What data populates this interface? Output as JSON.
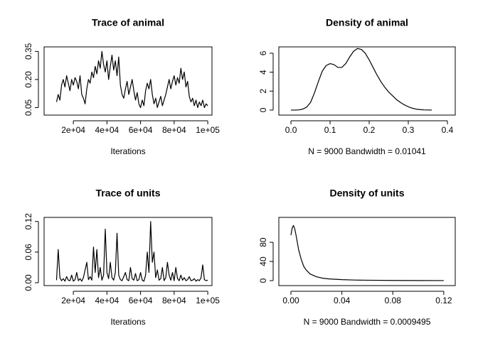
{
  "chart_data": [
    {
      "type": "line",
      "title": "Trace of animal",
      "x_label": "Iterations",
      "x": [
        10000,
        11000,
        12000,
        13000,
        14000,
        15000,
        16000,
        17000,
        18000,
        19000,
        20000,
        21000,
        22000,
        23000,
        24000,
        25000,
        26000,
        27000,
        28000,
        29000,
        30000,
        31000,
        32000,
        33000,
        34000,
        35000,
        36000,
        37000,
        38000,
        39000,
        40000,
        41000,
        42000,
        43000,
        44000,
        45000,
        46000,
        47000,
        48000,
        49000,
        50000,
        51000,
        52000,
        53000,
        54000,
        55000,
        56000,
        57000,
        58000,
        59000,
        60000,
        61000,
        62000,
        63000,
        64000,
        65000,
        66000,
        67000,
        68000,
        69000,
        70000,
        71000,
        72000,
        73000,
        74000,
        75000,
        76000,
        77000,
        78000,
        79000,
        80000,
        81000,
        82000,
        83000,
        84000,
        85000,
        86000,
        87000,
        88000,
        89000,
        90000,
        91000,
        92000,
        93000,
        94000,
        95000,
        96000,
        97000,
        98000,
        99000,
        100000
      ],
      "values": [
        0.08,
        0.12,
        0.09,
        0.17,
        0.2,
        0.16,
        0.22,
        0.18,
        0.14,
        0.2,
        0.17,
        0.21,
        0.19,
        0.15,
        0.22,
        0.12,
        0.1,
        0.07,
        0.15,
        0.2,
        0.18,
        0.24,
        0.21,
        0.27,
        0.23,
        0.3,
        0.26,
        0.35,
        0.28,
        0.24,
        0.3,
        0.2,
        0.27,
        0.33,
        0.25,
        0.3,
        0.22,
        0.32,
        0.17,
        0.12,
        0.1,
        0.15,
        0.19,
        0.12,
        0.16,
        0.2,
        0.14,
        0.09,
        0.13,
        0.07,
        0.05,
        0.09,
        0.06,
        0.14,
        0.18,
        0.15,
        0.2,
        0.12,
        0.07,
        0.1,
        0.05,
        0.08,
        0.11,
        0.06,
        0.09,
        0.12,
        0.16,
        0.2,
        0.15,
        0.19,
        0.22,
        0.17,
        0.21,
        0.18,
        0.26,
        0.2,
        0.24,
        0.16,
        0.19,
        0.11,
        0.08,
        0.1,
        0.06,
        0.09,
        0.05,
        0.08,
        0.06,
        0.09,
        0.05,
        0.07,
        0.06
      ],
      "color": "#000000",
      "xlim": [
        2600,
        102500
      ],
      "ylim": [
        0.01,
        0.374
      ],
      "xticks": [
        {
          "value": 20000,
          "label": "2e+04"
        },
        {
          "value": 40000,
          "label": "4e+04"
        },
        {
          "value": 60000,
          "label": "6e+04"
        },
        {
          "value": 80000,
          "label": "8e+04"
        },
        {
          "value": 100000,
          "label": "1e+05"
        }
      ],
      "yticks": [
        0.05,
        {
          "value": 0.2,
          "label": "0.20"
        },
        0.35
      ]
    },
    {
      "type": "line",
      "title": "Density of animal",
      "x_label": "N = 9000   Bandwidth = 0.01041",
      "x": [
        0,
        0.01,
        0.02,
        0.03,
        0.04,
        0.05,
        0.06,
        0.07,
        0.08,
        0.09,
        0.1,
        0.11,
        0.12,
        0.13,
        0.14,
        0.15,
        0.16,
        0.17,
        0.18,
        0.19,
        0.2,
        0.21,
        0.22,
        0.23,
        0.24,
        0.25,
        0.26,
        0.27,
        0.28,
        0.29,
        0.3,
        0.31,
        0.32,
        0.33,
        0.34,
        0.35,
        0.36
      ],
      "values": [
        0,
        0,
        0.02,
        0.1,
        0.3,
        0.8,
        1.8,
        3.0,
        4.1,
        4.7,
        4.9,
        4.8,
        4.5,
        4.5,
        4.9,
        5.6,
        6.2,
        6.5,
        6.4,
        6.0,
        5.3,
        4.5,
        3.7,
        3.0,
        2.4,
        1.9,
        1.5,
        1.1,
        0.8,
        0.55,
        0.35,
        0.2,
        0.1,
        0.05,
        0.02,
        0.01,
        0
      ],
      "color": "#000000",
      "xlim": [
        -0.031,
        0.42
      ],
      "ylim": [
        -0.53,
        6.67
      ],
      "xticks": [
        {
          "value": 0,
          "label": "0.0"
        },
        0.1,
        0.2,
        0.3,
        0.4
      ],
      "yticks": [
        0,
        2,
        4,
        6
      ]
    },
    {
      "type": "line",
      "title": "Trace of units",
      "x_label": "Iterations",
      "x": [
        10000,
        11000,
        12000,
        13000,
        14000,
        15000,
        16000,
        17000,
        18000,
        19000,
        20000,
        21000,
        22000,
        23000,
        24000,
        25000,
        26000,
        27000,
        28000,
        29000,
        30000,
        31000,
        32000,
        33000,
        34000,
        35000,
        36000,
        37000,
        38000,
        39000,
        40000,
        41000,
        42000,
        43000,
        44000,
        45000,
        46000,
        47000,
        48000,
        49000,
        50000,
        51000,
        52000,
        53000,
        54000,
        55000,
        56000,
        57000,
        58000,
        59000,
        60000,
        61000,
        62000,
        63000,
        64000,
        65000,
        66000,
        67000,
        68000,
        69000,
        70000,
        71000,
        72000,
        73000,
        74000,
        75000,
        76000,
        77000,
        78000,
        79000,
        80000,
        81000,
        82000,
        83000,
        84000,
        85000,
        86000,
        87000,
        88000,
        89000,
        90000,
        91000,
        92000,
        93000,
        94000,
        95000,
        96000,
        97000,
        98000,
        99000,
        100000
      ],
      "values": [
        0.005,
        0.065,
        0.01,
        0.004,
        0.008,
        0.003,
        0.012,
        0.005,
        0.004,
        0.015,
        0.003,
        0.006,
        0.02,
        0.004,
        0.008,
        0.003,
        0.01,
        0.025,
        0.04,
        0.006,
        0.012,
        0.005,
        0.07,
        0.02,
        0.065,
        0.01,
        0.03,
        0.005,
        0.015,
        0.105,
        0.02,
        0.008,
        0.04,
        0.01,
        0.005,
        0.02,
        0.097,
        0.015,
        0.006,
        0.004,
        0.012,
        0.02,
        0.006,
        0.004,
        0.03,
        0.008,
        0.005,
        0.018,
        0.004,
        0.006,
        0.02,
        0.005,
        0.003,
        0.015,
        0.06,
        0.02,
        0.12,
        0.04,
        0.06,
        0.01,
        0.025,
        0.005,
        0.008,
        0.03,
        0.004,
        0.01,
        0.04,
        0.015,
        0.005,
        0.02,
        0.004,
        0.03,
        0.008,
        0.004,
        0.015,
        0.005,
        0.01,
        0.004,
        0.006,
        0.012,
        0.004,
        0.005,
        0.008,
        0.003,
        0.006,
        0.004,
        0.01,
        0.035,
        0.006,
        0.004,
        0.005
      ],
      "color": "#000000",
      "xlim": [
        2600,
        102500
      ],
      "ylim": [
        -0.0056,
        0.128
      ],
      "xticks": [
        {
          "value": 20000,
          "label": "2e+04"
        },
        {
          "value": 40000,
          "label": "4e+04"
        },
        {
          "value": 60000,
          "label": "6e+04"
        },
        {
          "value": 80000,
          "label": "8e+04"
        },
        {
          "value": 100000,
          "label": "1e+05"
        }
      ],
      "yticks": [
        {
          "value": 0,
          "label": "0.00"
        },
        0.06,
        0.12
      ]
    },
    {
      "type": "line",
      "title": "Density of units",
      "x_label": "N = 9000   Bandwidth = 0.0009495",
      "x": [
        0,
        0.001,
        0.002,
        0.003,
        0.004,
        0.005,
        0.006,
        0.008,
        0.01,
        0.012,
        0.015,
        0.02,
        0.025,
        0.03,
        0.04,
        0.05,
        0.06,
        0.08,
        0.1,
        0.12
      ],
      "values": [
        95,
        110,
        115,
        108,
        95,
        80,
        65,
        45,
        30,
        22,
        14,
        8,
        5,
        3.5,
        2,
        1.2,
        0.8,
        0.4,
        0.2,
        0.1
      ],
      "color": "#000000",
      "xlim": [
        -0.0095,
        0.129
      ],
      "ylim": [
        -10.4,
        132
      ],
      "xticks": [
        {
          "value": 0,
          "label": "0.00"
        },
        0.04,
        0.08,
        0.12
      ],
      "yticks": [
        0,
        40,
        80
      ]
    }
  ]
}
